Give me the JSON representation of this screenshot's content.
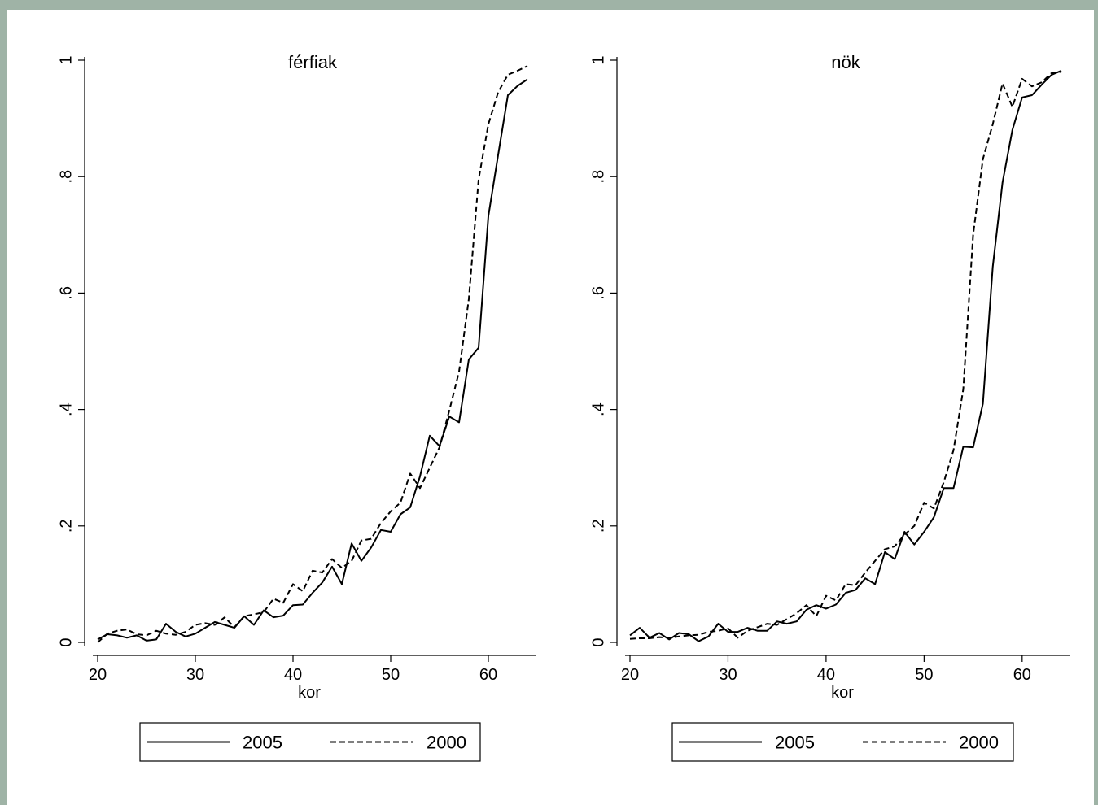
{
  "page": {
    "background_color": "#9fb3a6",
    "plot_background": "#ffffff"
  },
  "chart_data": [
    {
      "type": "line",
      "title": "férfiak",
      "xlabel": "kor",
      "ylabel": "",
      "xlim": [
        20,
        64
      ],
      "ylim": [
        0,
        1
      ],
      "xticks": [
        "20",
        "30",
        "40",
        "50",
        "60"
      ],
      "yticks": [
        "0",
        ".2",
        ".4",
        ".6",
        ".8",
        "1"
      ],
      "grid": false,
      "legend": "bottom",
      "x": [
        20,
        21,
        22,
        23,
        24,
        25,
        26,
        27,
        28,
        29,
        30,
        31,
        32,
        33,
        34,
        35,
        36,
        37,
        38,
        39,
        40,
        41,
        42,
        43,
        44,
        45,
        46,
        47,
        48,
        49,
        50,
        51,
        52,
        53,
        54,
        55,
        56,
        57,
        58,
        59,
        60,
        61,
        62,
        63,
        64
      ],
      "series": [
        {
          "name": "2005",
          "style": "solid",
          "values": [
            0.005,
            0.014,
            0.012,
            0.008,
            0.012,
            0.003,
            0.005,
            0.032,
            0.018,
            0.01,
            0.015,
            0.025,
            0.035,
            0.03,
            0.025,
            0.045,
            0.03,
            0.055,
            0.043,
            0.046,
            0.064,
            0.065,
            0.085,
            0.103,
            0.13,
            0.1,
            0.17,
            0.14,
            0.163,
            0.193,
            0.19,
            0.22,
            0.232,
            0.285,
            0.355,
            0.337,
            0.388,
            0.378,
            0.486,
            0.506,
            0.732,
            0.837,
            0.94,
            0.956,
            0.967
          ]
        },
        {
          "name": "2000",
          "style": "dashed",
          "values": [
            0.0,
            0.015,
            0.02,
            0.022,
            0.014,
            0.012,
            0.02,
            0.015,
            0.013,
            0.018,
            0.03,
            0.033,
            0.03,
            0.043,
            0.026,
            0.045,
            0.048,
            0.052,
            0.075,
            0.068,
            0.1,
            0.088,
            0.123,
            0.12,
            0.143,
            0.128,
            0.14,
            0.175,
            0.178,
            0.205,
            0.225,
            0.24,
            0.29,
            0.265,
            0.3,
            0.335,
            0.398,
            0.465,
            0.59,
            0.795,
            0.89,
            0.945,
            0.975,
            0.982,
            0.99
          ]
        }
      ]
    },
    {
      "type": "line",
      "title": "nök",
      "xlabel": "kor",
      "ylabel": "",
      "xlim": [
        20,
        64
      ],
      "ylim": [
        0,
        1
      ],
      "xticks": [
        "20",
        "30",
        "40",
        "50",
        "60"
      ],
      "yticks": [
        "0",
        ".2",
        ".4",
        ".6",
        ".8",
        "1"
      ],
      "grid": false,
      "legend": "bottom",
      "x": [
        20,
        21,
        22,
        23,
        24,
        25,
        26,
        27,
        28,
        29,
        30,
        31,
        32,
        33,
        34,
        35,
        36,
        37,
        38,
        39,
        40,
        41,
        42,
        43,
        44,
        45,
        46,
        47,
        48,
        49,
        50,
        51,
        52,
        53,
        54,
        55,
        56,
        57,
        58,
        59,
        60,
        61,
        62,
        63,
        64
      ],
      "series": [
        {
          "name": "2005",
          "style": "solid",
          "values": [
            0.012,
            0.025,
            0.008,
            0.016,
            0.005,
            0.016,
            0.014,
            0.002,
            0.01,
            0.032,
            0.018,
            0.018,
            0.025,
            0.02,
            0.02,
            0.036,
            0.032,
            0.036,
            0.056,
            0.064,
            0.058,
            0.065,
            0.085,
            0.09,
            0.11,
            0.1,
            0.155,
            0.143,
            0.19,
            0.168,
            0.19,
            0.215,
            0.265,
            0.265,
            0.336,
            0.335,
            0.41,
            0.645,
            0.79,
            0.88,
            0.936,
            0.94,
            0.958,
            0.975,
            0.982
          ]
        },
        {
          "name": "2000",
          "style": "dashed",
          "values": [
            0.006,
            0.007,
            0.007,
            0.009,
            0.008,
            0.01,
            0.012,
            0.013,
            0.018,
            0.02,
            0.024,
            0.008,
            0.02,
            0.026,
            0.032,
            0.03,
            0.04,
            0.05,
            0.064,
            0.045,
            0.08,
            0.072,
            0.1,
            0.098,
            0.12,
            0.14,
            0.16,
            0.165,
            0.185,
            0.2,
            0.24,
            0.23,
            0.275,
            0.33,
            0.435,
            0.7,
            0.83,
            0.89,
            0.96,
            0.92,
            0.968,
            0.955,
            0.962,
            0.978,
            0.98
          ]
        }
      ]
    }
  ]
}
